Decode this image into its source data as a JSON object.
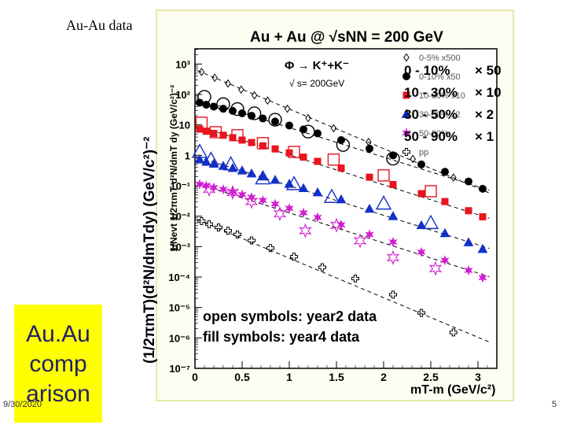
{
  "slide": {
    "title": "Au-Au data",
    "side_box_lines": [
      "Au.Au",
      "comp",
      "arison"
    ],
    "date": "9/30/2020",
    "page_number": "5"
  },
  "colors": {
    "highlight_box": "#ffff00",
    "red": "#e8141e",
    "blue": "#1230c8",
    "magenta": "#d21ed2",
    "black": "#000000"
  },
  "chart_data": {
    "type": "scatter",
    "title": "Au + Au @ √sNN = 200 GeV",
    "ylabel": "(1/2πmT)(d²N/dmTdy) (GeV/c²)⁻²",
    "ylabel_inner": "1/Nevt 1/2πmT d²N/dmT dy (GeV/c²)⁻²",
    "xlabel": "mT-m (GeV/c²)",
    "xlim": [
      0,
      3.2
    ],
    "ylim_log10": [
      -7,
      3.5
    ],
    "x_ticks": [
      "0",
      "0.5",
      "1",
      "1.5",
      "2",
      "2.5",
      "3"
    ],
    "y_ticks": [
      "10⁻⁷",
      "10⁻⁶",
      "10⁻⁵",
      "10⁻⁴",
      "10⁻³",
      "10⁻²",
      "10⁻¹",
      "1",
      "10",
      "10²",
      "10³"
    ],
    "reaction": "Φ → K⁺+K⁻",
    "energy_note": "√ s= 200GeV",
    "legend_small": [
      "0-5% x500",
      "0-10% x50",
      "10-30% x10",
      "30-50% x2",
      "50-80%",
      "pp"
    ],
    "legend_large": [
      {
        "label": "0 - 10%",
        "scale": "× 50",
        "color": "#000000"
      },
      {
        "label": "10 - 30%",
        "scale": "× 10",
        "color": "#e8141e"
      },
      {
        "label": "30 - 50%",
        "scale": "× 2",
        "color": "#1230c8"
      },
      {
        "label": "50 - 90%",
        "scale": "× 1",
        "color": "#d21ed2"
      }
    ],
    "notes": [
      "open symbols: year2 data",
      "fill symbols: year4 data"
    ],
    "series": [
      {
        "name": "0-5% x500",
        "marker": "diamond-open",
        "color": "#000000",
        "x": [
          0.07,
          0.21,
          0.35,
          0.49,
          0.63,
          0.77,
          0.98,
          1.2,
          1.47,
          1.84,
          2.31,
          2.74
        ],
        "log10y": [
          2.74,
          2.55,
          2.36,
          2.16,
          1.97,
          1.8,
          1.53,
          1.22,
          0.89,
          0.44,
          -0.12,
          -0.73
        ]
      },
      {
        "name": "0-10% x50 (year4)",
        "marker": "circle-filled",
        "color": "#000000",
        "x": [
          0.05,
          0.12,
          0.2,
          0.3,
          0.4,
          0.5,
          0.6,
          0.72,
          0.85,
          1.0,
          1.15,
          1.3,
          1.55,
          1.85,
          2.1,
          2.4,
          2.65,
          2.9,
          3.05
        ],
        "log10y": [
          1.73,
          1.66,
          1.6,
          1.53,
          1.46,
          1.38,
          1.3,
          1.21,
          1.11,
          0.98,
          0.85,
          0.72,
          0.5,
          0.22,
          0.0,
          -0.3,
          -0.54,
          -0.86,
          -1.1
        ]
      },
      {
        "name": "0-10% x50 (year2)",
        "marker": "circle-open",
        "color": "#000000",
        "x": [
          0.1,
          0.3,
          0.45,
          0.63,
          0.85,
          1.2,
          1.57,
          2.1
        ],
        "log10y": [
          1.92,
          1.68,
          1.52,
          1.38,
          1.17,
          0.78,
          0.34,
          -0.11
        ]
      },
      {
        "name": "10-30% x10 (year4)",
        "marker": "square-filled",
        "color": "#e8141e",
        "x": [
          0.05,
          0.12,
          0.2,
          0.3,
          0.4,
          0.5,
          0.6,
          0.72,
          0.85,
          1.0,
          1.15,
          1.3,
          1.55,
          1.85,
          2.1,
          2.4,
          2.65,
          2.9,
          3.05
        ],
        "log10y": [
          0.86,
          0.79,
          0.72,
          0.66,
          0.58,
          0.5,
          0.42,
          0.31,
          0.21,
          0.08,
          -0.06,
          -0.2,
          -0.42,
          -0.72,
          -0.96,
          -1.26,
          -1.52,
          -1.82,
          -2.02
        ]
      },
      {
        "name": "10-30% x10 (year2)",
        "marker": "square-open",
        "color": "#e8141e",
        "x": [
          0.07,
          0.22,
          0.45,
          0.72,
          1.05,
          1.47,
          2.0,
          2.5
        ],
        "log10y": [
          1.07,
          0.76,
          0.66,
          0.4,
          0.11,
          -0.14,
          -0.66,
          -1.18
        ]
      },
      {
        "name": "30-50% x2 (year4)",
        "marker": "triangle-filled",
        "color": "#1230c8",
        "x": [
          0.05,
          0.12,
          0.2,
          0.3,
          0.4,
          0.5,
          0.6,
          0.72,
          0.85,
          1.0,
          1.15,
          1.3,
          1.55,
          1.85,
          2.1,
          2.4,
          2.65,
          2.9,
          3.05
        ],
        "log10y": [
          -0.14,
          -0.21,
          -0.28,
          -0.35,
          -0.42,
          -0.5,
          -0.6,
          -0.7,
          -0.81,
          -0.94,
          -1.08,
          -1.22,
          -1.45,
          -1.76,
          -2.0,
          -2.3,
          -2.56,
          -2.86,
          -3.08
        ]
      },
      {
        "name": "30-50% x2 (year2)",
        "marker": "triangle-open",
        "color": "#1230c8",
        "x": [
          0.05,
          0.17,
          0.38,
          0.72,
          1.05,
          1.45,
          2.0,
          2.5
        ],
        "log10y": [
          0.12,
          -0.14,
          -0.29,
          -0.75,
          -0.94,
          -1.36,
          -1.58,
          -2.22
        ]
      },
      {
        "name": "50-90% x1 (year4)",
        "marker": "star-filled",
        "color": "#d21ed2",
        "x": [
          0.05,
          0.12,
          0.2,
          0.3,
          0.4,
          0.5,
          0.6,
          0.72,
          0.85,
          1.0,
          1.15,
          1.3,
          1.55,
          1.85,
          2.1,
          2.4,
          2.65,
          2.9,
          3.05
        ],
        "log10y": [
          -0.95,
          -1.0,
          -1.06,
          -1.12,
          -1.2,
          -1.29,
          -1.38,
          -1.48,
          -1.6,
          -1.74,
          -1.89,
          -2.04,
          -2.28,
          -2.6,
          -2.85,
          -3.18,
          -3.45,
          -3.78,
          -4.02
        ]
      },
      {
        "name": "50-80% (year2)",
        "marker": "star-open",
        "color": "#d21ed2",
        "x": [
          0.15,
          0.4,
          0.6,
          0.9,
          1.17,
          1.5,
          1.75,
          2.1,
          2.55
        ],
        "log10y": [
          -1.12,
          -1.22,
          -1.52,
          -1.92,
          -2.48,
          -2.3,
          -2.81,
          -3.36,
          -3.72
        ]
      },
      {
        "name": "pp",
        "marker": "cross-open",
        "color": "#000000",
        "x": [
          0.07,
          0.15,
          0.25,
          0.35,
          0.45,
          0.6,
          0.8,
          1.05,
          1.35,
          1.7,
          2.1,
          2.4,
          2.74
        ],
        "log10y": [
          -2.16,
          -2.26,
          -2.37,
          -2.48,
          -2.6,
          -2.8,
          -3.05,
          -3.33,
          -3.68,
          -4.05,
          -4.58,
          -5.18,
          -5.82
        ]
      }
    ],
    "fit_lines": [
      {
        "slope": -1.3,
        "intercept": 2.82
      },
      {
        "slope": -0.97,
        "intercept": 1.88
      },
      {
        "slope": -0.98,
        "intercept": 0.99
      },
      {
        "slope": -0.97,
        "intercept": -0.03
      },
      {
        "slope": -0.99,
        "intercept": -0.9
      },
      {
        "slope": -1.3,
        "intercept": -2.08
      }
    ]
  }
}
